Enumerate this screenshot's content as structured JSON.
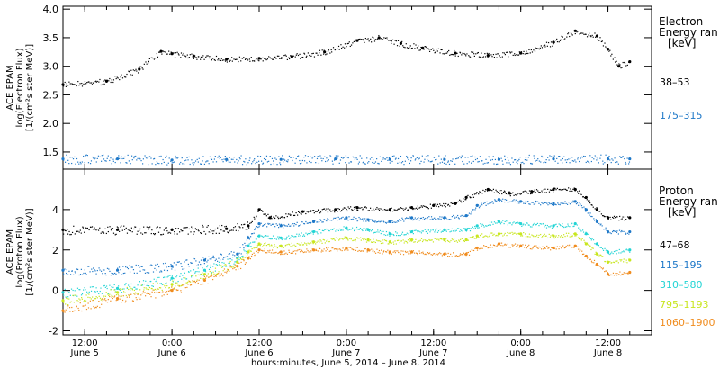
{
  "chart_data": [
    {
      "type": "scatter",
      "ylabel_lines": [
        "ACE EPAM",
        "log(Electron Flux)",
        "[1/(cm²s ster MeV)]"
      ],
      "ylim": [
        1.2,
        4.05
      ],
      "yticks": [
        "1.5",
        "2.0",
        "2.5",
        "3.0",
        "3.5",
        "4.0"
      ],
      "legend_title": [
        "Electron",
        "Energy ran",
        "[keV]"
      ],
      "series": [
        {
          "name": "38–53",
          "color": "#000000",
          "points": [
            [
              0,
              2.68
            ],
            [
              8,
              2.74
            ],
            [
              14,
              2.95
            ],
            [
              18,
              3.26
            ],
            [
              20,
              3.22
            ],
            [
              24,
              3.18
            ],
            [
              30,
              3.12
            ],
            [
              36,
              3.14
            ],
            [
              42,
              3.17
            ],
            [
              48,
              3.25
            ],
            [
              54,
              3.45
            ],
            [
              58,
              3.5
            ],
            [
              62,
              3.4
            ],
            [
              66,
              3.32
            ],
            [
              72,
              3.23
            ],
            [
              78,
              3.19
            ],
            [
              84,
              3.23
            ],
            [
              90,
              3.42
            ],
            [
              94,
              3.62
            ],
            [
              98,
              3.53
            ],
            [
              100,
              3.3
            ],
            [
              102,
              3.0
            ],
            [
              104,
              3.08
            ]
          ]
        },
        {
          "name": "175–315",
          "color": "#1e78c8",
          "points": [
            [
              0,
              1.38
            ],
            [
              10,
              1.38
            ],
            [
              20,
              1.36
            ],
            [
              30,
              1.37
            ],
            [
              40,
              1.37
            ],
            [
              50,
              1.38
            ],
            [
              60,
              1.37
            ],
            [
              70,
              1.37
            ],
            [
              80,
              1.37
            ],
            [
              90,
              1.38
            ],
            [
              100,
              1.38
            ],
            [
              104,
              1.38
            ]
          ]
        }
      ]
    },
    {
      "type": "scatter",
      "ylabel_lines": [
        "ACE EPAM",
        "log(Proton Flux)",
        "[1/(cm²s ster MeV)]"
      ],
      "ylim": [
        -2.2,
        6.0
      ],
      "yticks": [
        "-2",
        "0",
        "2",
        "4"
      ],
      "legend_title": [
        "Proton",
        "Energy ran",
        "[keV]"
      ],
      "series": [
        {
          "name": "47–68",
          "color": "#000000",
          "points": [
            [
              0,
              3.0
            ],
            [
              10,
              3.0
            ],
            [
              20,
              3.0
            ],
            [
              30,
              3.05
            ],
            [
              34,
              3.2
            ],
            [
              36,
              4.0
            ],
            [
              38,
              3.6
            ],
            [
              44,
              3.9
            ],
            [
              50,
              4.0
            ],
            [
              54,
              4.1
            ],
            [
              60,
              4.0
            ],
            [
              64,
              4.1
            ],
            [
              68,
              4.2
            ],
            [
              72,
              4.3
            ],
            [
              74,
              4.6
            ],
            [
              78,
              5.0
            ],
            [
              82,
              4.8
            ],
            [
              86,
              4.9
            ],
            [
              90,
              5.0
            ],
            [
              94,
              5.0
            ],
            [
              96,
              4.6
            ],
            [
              98,
              4.0
            ],
            [
              100,
              3.6
            ],
            [
              104,
              3.6
            ]
          ]
        },
        {
          "name": "115–195",
          "color": "#1e78c8",
          "points": [
            [
              0,
              1.0
            ],
            [
              10,
              1.0
            ],
            [
              20,
              1.2
            ],
            [
              26,
              1.5
            ],
            [
              32,
              1.8
            ],
            [
              34,
              2.6
            ],
            [
              36,
              3.3
            ],
            [
              40,
              3.2
            ],
            [
              46,
              3.4
            ],
            [
              52,
              3.6
            ],
            [
              56,
              3.5
            ],
            [
              60,
              3.4
            ],
            [
              64,
              3.6
            ],
            [
              70,
              3.6
            ],
            [
              74,
              3.7
            ],
            [
              76,
              4.2
            ],
            [
              80,
              4.5
            ],
            [
              84,
              4.4
            ],
            [
              90,
              4.3
            ],
            [
              94,
              4.4
            ],
            [
              96,
              4.0
            ],
            [
              98,
              3.4
            ],
            [
              100,
              2.9
            ],
            [
              104,
              2.9
            ]
          ]
        },
        {
          "name": "310–580",
          "color": "#22d4d4",
          "points": [
            [
              0,
              -0.1
            ],
            [
              10,
              0.1
            ],
            [
              20,
              0.6
            ],
            [
              26,
              1.0
            ],
            [
              32,
              1.6
            ],
            [
              34,
              2.2
            ],
            [
              36,
              2.7
            ],
            [
              40,
              2.6
            ],
            [
              46,
              2.9
            ],
            [
              52,
              3.1
            ],
            [
              56,
              3.0
            ],
            [
              60,
              2.8
            ],
            [
              64,
              2.9
            ],
            [
              70,
              3.0
            ],
            [
              74,
              3.0
            ],
            [
              76,
              3.2
            ],
            [
              80,
              3.4
            ],
            [
              84,
              3.3
            ],
            [
              90,
              3.2
            ],
            [
              94,
              3.3
            ],
            [
              96,
              2.8
            ],
            [
              98,
              2.3
            ],
            [
              100,
              1.9
            ],
            [
              104,
              2.0
            ]
          ]
        },
        {
          "name": "795–1193",
          "color": "#c8e61e",
          "points": [
            [
              0,
              -0.5
            ],
            [
              10,
              -0.1
            ],
            [
              20,
              0.3
            ],
            [
              26,
              0.8
            ],
            [
              32,
              1.4
            ],
            [
              34,
              1.9
            ],
            [
              36,
              2.3
            ],
            [
              40,
              2.2
            ],
            [
              46,
              2.4
            ],
            [
              52,
              2.6
            ],
            [
              56,
              2.5
            ],
            [
              60,
              2.4
            ],
            [
              64,
              2.5
            ],
            [
              70,
              2.5
            ],
            [
              74,
              2.5
            ],
            [
              76,
              2.7
            ],
            [
              80,
              2.8
            ],
            [
              84,
              2.8
            ],
            [
              90,
              2.7
            ],
            [
              94,
              2.8
            ],
            [
              96,
              2.3
            ],
            [
              98,
              1.8
            ],
            [
              100,
              1.4
            ],
            [
              104,
              1.5
            ]
          ]
        },
        {
          "name": "1060–1900",
          "color": "#f08c1e",
          "points": [
            [
              0,
              -1.0
            ],
            [
              10,
              -0.4
            ],
            [
              20,
              0.0
            ],
            [
              26,
              0.5
            ],
            [
              32,
              1.2
            ],
            [
              34,
              1.6
            ],
            [
              36,
              2.0
            ],
            [
              40,
              1.9
            ],
            [
              46,
              2.0
            ],
            [
              52,
              2.1
            ],
            [
              56,
              2.0
            ],
            [
              60,
              1.9
            ],
            [
              64,
              1.9
            ],
            [
              70,
              1.8
            ],
            [
              74,
              1.8
            ],
            [
              76,
              2.1
            ],
            [
              80,
              2.3
            ],
            [
              84,
              2.2
            ],
            [
              90,
              2.1
            ],
            [
              94,
              2.2
            ],
            [
              96,
              1.7
            ],
            [
              98,
              1.3
            ],
            [
              100,
              0.8
            ],
            [
              104,
              0.9
            ]
          ]
        }
      ]
    }
  ],
  "xaxis": {
    "xlim": [
      0,
      108
    ],
    "ticks": [
      {
        "x": 4,
        "time": "12:00",
        "date": "June 5"
      },
      {
        "x": 20,
        "time": "0:00",
        "date": "June 6"
      },
      {
        "x": 36,
        "time": "12:00",
        "date": "June 6"
      },
      {
        "x": 52,
        "time": "0:00",
        "date": "June 7"
      },
      {
        "x": 68,
        "time": "12:00",
        "date": "June 7"
      },
      {
        "x": 84,
        "time": "0:00",
        "date": "June 8"
      },
      {
        "x": 100,
        "time": "12:00",
        "date": "June 8"
      }
    ],
    "label": "hours:minutes, June  5, 2014 – June  8, 2014"
  }
}
